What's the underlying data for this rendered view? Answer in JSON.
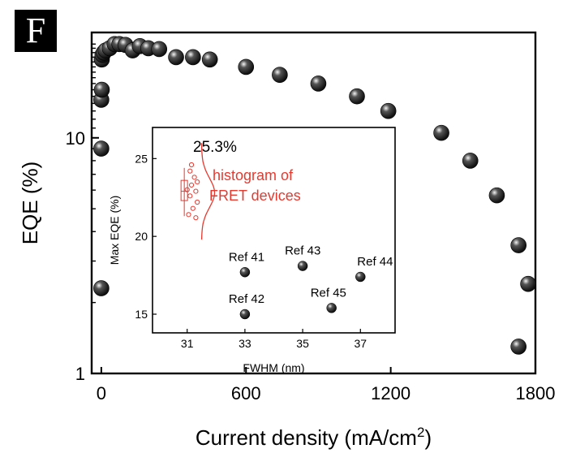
{
  "panel_label": "F",
  "colors": {
    "marker": "#111111",
    "axis": "#000000",
    "highlight": "#e8392f"
  },
  "chart_data": [
    {
      "type": "scatter",
      "title": "",
      "xlabel": "Current density (mA/cm",
      "xlabel_sup": "2",
      "xlabel_tail": ")",
      "ylabel": "EQE (%)",
      "xlim": [
        -40,
        1800
      ],
      "ylim": [
        1,
        28
      ],
      "yscale": "log",
      "xticks": [
        0,
        600,
        1200,
        1800
      ],
      "yticks": [
        1,
        10
      ],
      "grid": false,
      "legend": "none",
      "series": [
        {
          "x": [
            0,
            0,
            0,
            2,
            2,
            5,
            10,
            18,
            35,
            55,
            75,
            100,
            130,
            160,
            195,
            240,
            310,
            380,
            450,
            600,
            740,
            900,
            1060,
            1190,
            1410,
            1530,
            1640,
            1730,
            1770,
            1730
          ],
          "y": [
            2.3,
            9.0,
            14.5,
            16.0,
            21.5,
            22.5,
            23.0,
            23.5,
            24.0,
            25.0,
            25.0,
            24.8,
            23.5,
            24.5,
            24.0,
            23.8,
            22.0,
            22.0,
            21.5,
            20.0,
            18.5,
            17.0,
            15.0,
            13.0,
            10.5,
            8.0,
            5.7,
            3.5,
            2.4,
            1.3
          ]
        }
      ]
    },
    {
      "type": "scatter",
      "title": "",
      "xlabel": "FWHM (nm)",
      "ylabel": "Max EQE (%)",
      "xlim": [
        29.8,
        38.2
      ],
      "ylim": [
        13.8,
        27
      ],
      "xticks": [
        31,
        33,
        35,
        37
      ],
      "yticks": [
        15,
        20,
        25
      ],
      "grid": false,
      "legend": "none",
      "points": [
        {
          "label": "Ref 41",
          "x": 33,
          "y": 17.7
        },
        {
          "label": "Ref 42",
          "x": 33,
          "y": 15.0
        },
        {
          "label": "Ref 43",
          "x": 35,
          "y": 18.1
        },
        {
          "label": "Ref 44",
          "x": 37,
          "y": 17.4
        },
        {
          "label": "Ref 45",
          "x": 36,
          "y": 15.4
        }
      ],
      "annotations": {
        "max_label": "25.3%",
        "histogram_line1": "histogram of",
        "histogram_line2": "FRET devices"
      },
      "histogram_points": [
        {
          "x": 31.1,
          "y": 24.2
        },
        {
          "x": 31.25,
          "y": 23.8
        },
        {
          "x": 31.15,
          "y": 23.3
        },
        {
          "x": 31.3,
          "y": 22.9
        },
        {
          "x": 31.1,
          "y": 22.6
        },
        {
          "x": 31.35,
          "y": 22.2
        },
        {
          "x": 31.2,
          "y": 21.8
        },
        {
          "x": 31.05,
          "y": 21.4
        },
        {
          "x": 31.3,
          "y": 21.2
        },
        {
          "x": 31.15,
          "y": 24.6
        },
        {
          "x": 31.35,
          "y": 23.5
        },
        {
          "x": 31.0,
          "y": 23.0
        }
      ],
      "boxplot": {
        "x": 30.9,
        "min": 21.3,
        "q1": 22.3,
        "median": 22.9,
        "q3": 23.6,
        "max": 24.4
      }
    }
  ]
}
